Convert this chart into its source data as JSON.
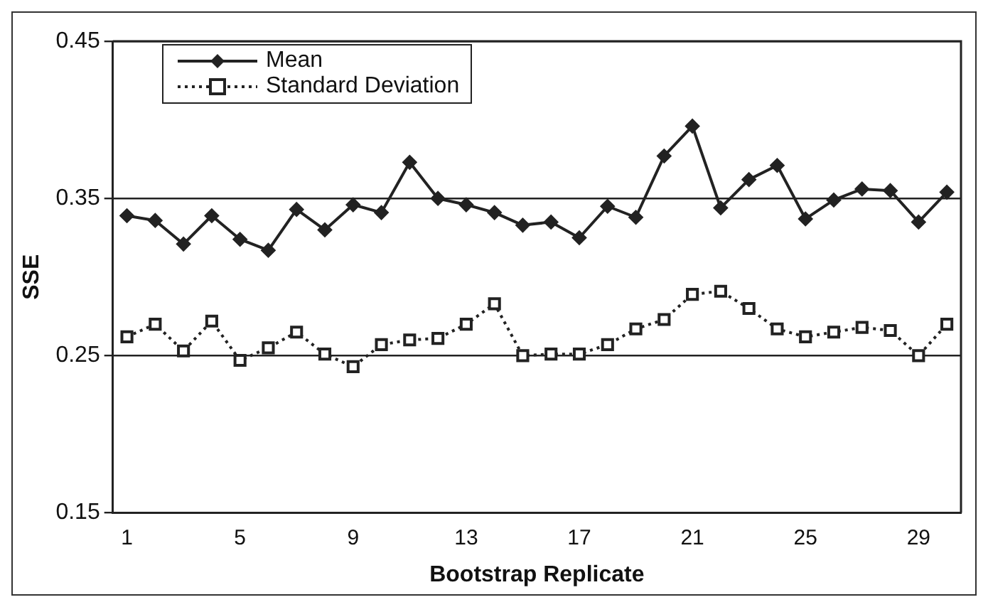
{
  "chart_data": {
    "type": "line",
    "xlabel": "Bootstrap Replicate",
    "ylabel": "SSE",
    "categories": [
      "1",
      null,
      null,
      null,
      "5",
      null,
      null,
      null,
      "9",
      null,
      null,
      null,
      "13",
      null,
      null,
      null,
      "17",
      null,
      null,
      null,
      "21",
      null,
      null,
      null,
      "25",
      null,
      null,
      null,
      "29",
      null
    ],
    "series": [
      {
        "name": "Mean",
        "color": "#222222",
        "marker": "diamond",
        "line_style": "solid",
        "values": [
          0.339,
          0.336,
          0.321,
          0.339,
          0.324,
          0.317,
          0.343,
          0.33,
          0.346,
          0.341,
          0.373,
          0.35,
          0.346,
          0.341,
          0.333,
          0.335,
          0.325,
          0.345,
          0.338,
          0.377,
          0.396,
          0.344,
          0.362,
          0.371,
          0.337,
          0.349,
          0.356,
          0.355,
          0.335,
          0.354
        ]
      },
      {
        "name": "Standard Deviation",
        "color": "#222222",
        "marker": "square",
        "line_style": "dotted",
        "values": [
          0.262,
          0.27,
          0.253,
          0.272,
          0.247,
          0.255,
          0.265,
          0.251,
          0.243,
          0.257,
          0.26,
          0.261,
          0.27,
          0.283,
          0.25,
          0.251,
          0.251,
          0.257,
          0.267,
          0.273,
          0.289,
          0.291,
          0.28,
          0.267,
          0.262,
          0.265,
          0.268,
          0.266,
          0.25,
          0.27
        ]
      }
    ],
    "ylim": [
      0.15,
      0.45
    ],
    "yticks": [
      0.15,
      0.25,
      0.35,
      0.45
    ],
    "grid": "y",
    "legend": "top left"
  }
}
